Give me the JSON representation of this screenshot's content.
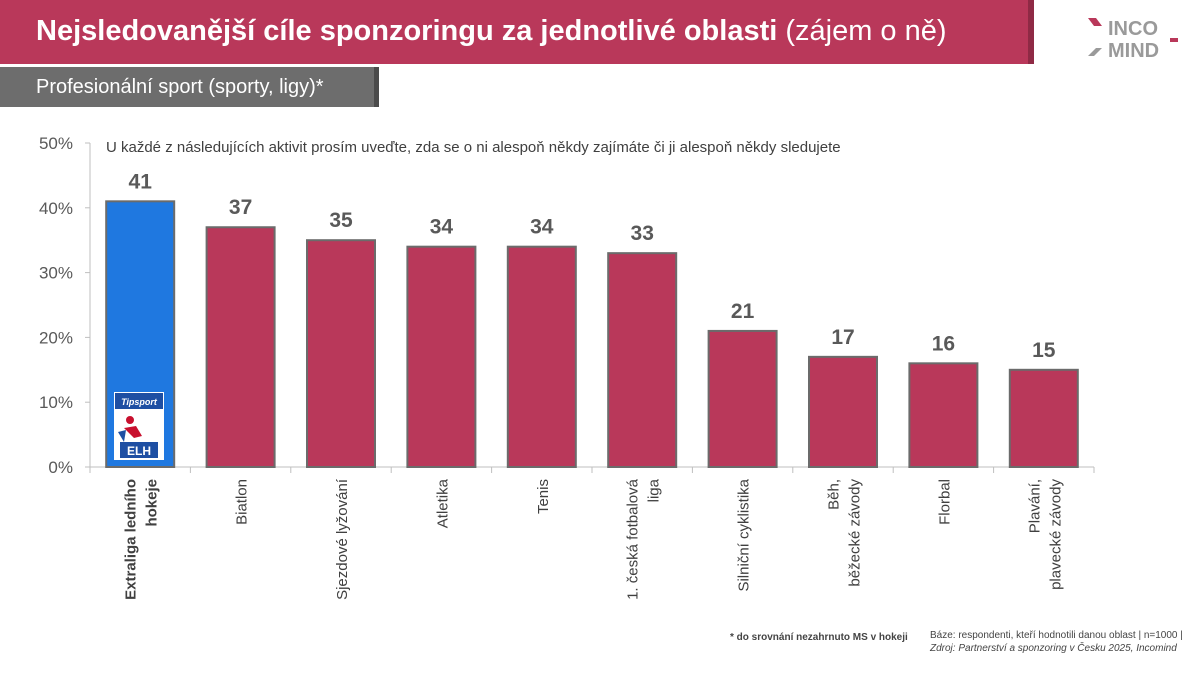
{
  "header": {
    "title_main": "Nejsledovanější cíle sponzoringu za jednotlivé oblasti",
    "title_paren": "(zájem o ně)",
    "subtitle": "Profesionální sport (sporty, ligy)*"
  },
  "logo": {
    "line1": "INCO",
    "line2": "MIND",
    "icon": "incomind-logo"
  },
  "question": "U každé z následujících aktivit prosím uveďte, zda se o ni alespoň někdy zajímáte či ji alespoň někdy sledujete",
  "highlight_logo": {
    "brand": "Tipsport",
    "league": "ELH",
    "icon": "tipsport-elh-logo"
  },
  "chart_data": {
    "type": "bar",
    "categories": [
      [
        "Extraliga ledního",
        "hokeje"
      ],
      [
        "Biatlon"
      ],
      [
        "Sjezdové lyžování"
      ],
      [
        "Atletika"
      ],
      [
        "Tenis"
      ],
      [
        "1. česká fotbalová",
        "liga"
      ],
      [
        "Silniční cyklistika"
      ],
      [
        "Běh,",
        "běžecké závody"
      ],
      [
        "Florbal"
      ],
      [
        "Plavání,",
        "plavecké závody"
      ]
    ],
    "values": [
      41,
      37,
      35,
      34,
      34,
      33,
      21,
      17,
      16,
      15
    ],
    "data_labels": [
      "41",
      "37",
      "35",
      "34",
      "34",
      "33",
      "21",
      "17",
      "16",
      "15"
    ],
    "yticks": [
      "0%",
      "10%",
      "20%",
      "30%",
      "40%",
      "50%"
    ],
    "ylim": [
      0,
      50
    ],
    "highlight_index": 0,
    "colors": {
      "bar": "#b9385a",
      "highlight": "#1f78e0",
      "bar_edge": "#6b6b6b",
      "axis": "#bfbfbf"
    },
    "grid": false
  },
  "footer": {
    "note": "* do srovnání nezahrnuto MS v hokeji",
    "base": "Báze: respondenti, kteří hodnotili danou oblast | n=1000 |",
    "source": "Zdroj: Partnerství a sponzoring v Česku 2025, Incomind"
  }
}
